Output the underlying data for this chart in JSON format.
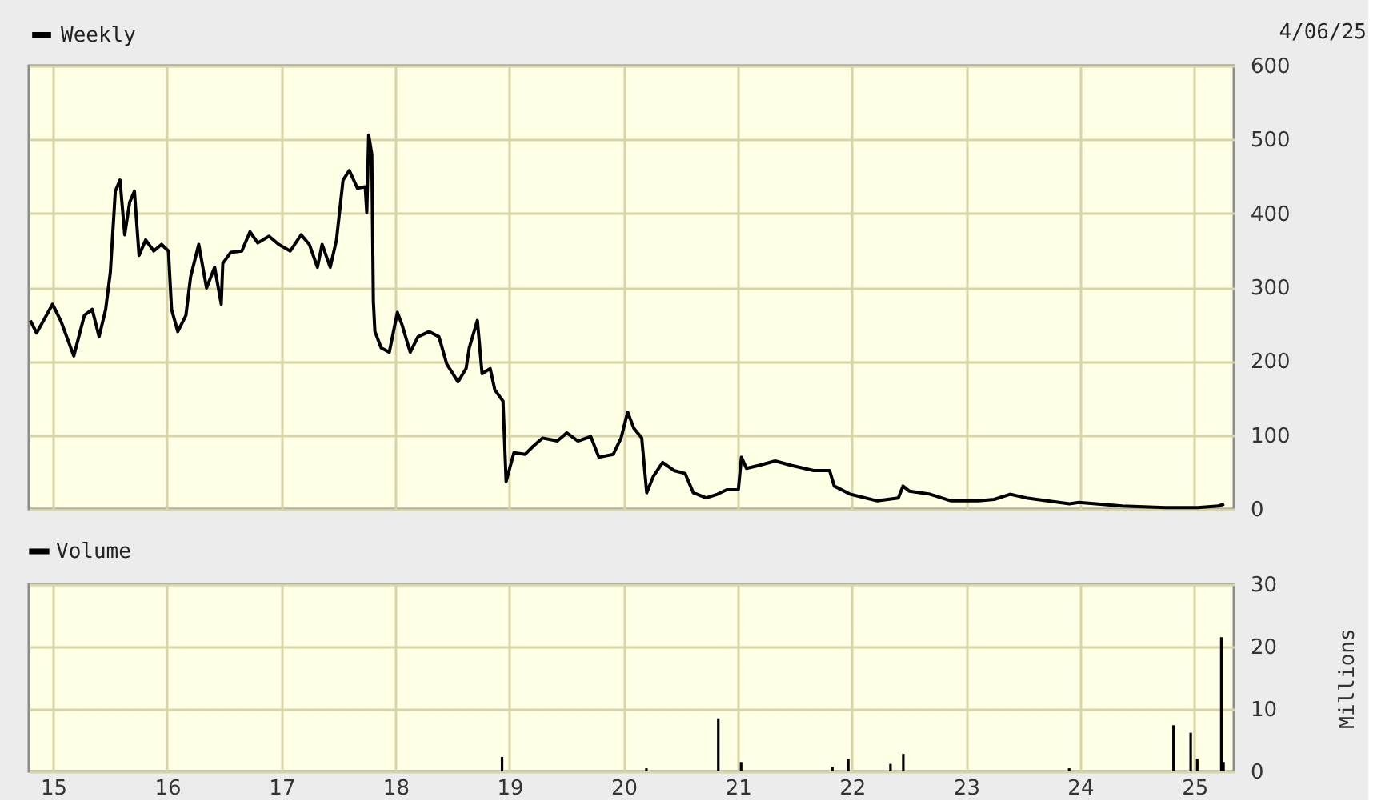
{
  "chart_data": [
    {
      "type": "line",
      "series": [
        {
          "name": "Weekly",
          "color": "#000000",
          "x": [
            "2014-10-20",
            "2014-11-09",
            "2014-12-30",
            "2015-01-25",
            "2015-03-08",
            "2015-04-11",
            "2015-05-06",
            "2015-05-28",
            "2015-06-18",
            "2015-07-03",
            "2015-07-19",
            "2015-08-03",
            "2015-08-18",
            "2015-09-03",
            "2015-09-18",
            "2015-10-03",
            "2015-10-24",
            "2015-11-19",
            "2015-12-14",
            "2016-01-05",
            "2016-01-15",
            "2016-02-04",
            "2016-03-01",
            "2016-03-16",
            "2016-04-11",
            "2016-05-06",
            "2016-06-01",
            "2016-06-22",
            "2016-06-27",
            "2016-07-22",
            "2016-08-27",
            "2016-09-22",
            "2016-10-17",
            "2016-11-22",
            "2016-12-23",
            "2017-01-29",
            "2017-03-05",
            "2017-03-31",
            "2017-04-26",
            "2017-05-11",
            "2017-06-06",
            "2017-06-26",
            "2017-07-17",
            "2017-08-06",
            "2017-09-01",
            "2017-09-26",
            "2017-10-01",
            "2017-10-07",
            "2017-10-17",
            "2017-10-22",
            "2017-10-27",
            "2017-11-16",
            "2017-12-12",
            "2018-01-07",
            "2018-01-22",
            "2018-02-17",
            "2018-03-14",
            "2018-04-19",
            "2018-05-20",
            "2018-06-14",
            "2018-07-20",
            "2018-08-15",
            "2018-08-25",
            "2018-09-20",
            "2018-10-05",
            "2018-10-31",
            "2018-11-15",
            "2018-12-11",
            "2018-12-21",
            "2019-01-15",
            "2019-02-20",
            "2019-03-18",
            "2019-04-17",
            "2019-06-03",
            "2019-07-03",
            "2019-08-08",
            "2019-09-18",
            "2019-10-14",
            "2019-11-29",
            "2019-12-24",
            "2020-01-14",
            "2020-02-03",
            "2020-02-28",
            "2020-03-15",
            "2020-04-05",
            "2020-05-05",
            "2020-06-10",
            "2020-07-16",
            "2020-08-11",
            "2020-09-21",
            "2020-10-27",
            "2020-11-26",
            "2021-01-02",
            "2021-01-12",
            "2021-01-28",
            "2021-03-10",
            "2021-04-30",
            "2021-06-20",
            "2021-08-31",
            "2021-10-21",
            "2021-11-05",
            "2021-12-26",
            "2022-03-23",
            "2022-05-29",
            "2022-06-13",
            "2022-07-04",
            "2022-09-08",
            "2022-11-14",
            "2023-02-09",
            "2023-04-01",
            "2023-05-22",
            "2023-07-13",
            "2023-09-17",
            "2023-11-28",
            "2023-12-28",
            "2024-05-15",
            "2024-09-30",
            "2025-01-11",
            "2025-03-19",
            "2025-04-06"
          ],
          "values": [
            255,
            238,
            277,
            255,
            207,
            262,
            270,
            233,
            270,
            320,
            430,
            445,
            371,
            415,
            430,
            343,
            364,
            349,
            358,
            349,
            270,
            240,
            262,
            314,
            358,
            299,
            327,
            277,
            332,
            347,
            349,
            375,
            360,
            369,
            358,
            349,
            371,
            358,
            327,
            358,
            327,
            364,
            445,
            458,
            434,
            436,
            401,
            506,
            480,
            281,
            240,
            218,
            212,
            266,
            249,
            212,
            233,
            240,
            233,
            196,
            172,
            190,
            218,
            255,
            183,
            190,
            161,
            146,
            37,
            76,
            74,
            85,
            96,
            92,
            103,
            92,
            98,
            70,
            74,
            96,
            131,
            109,
            96,
            22,
            44,
            63,
            52,
            48,
            22,
            15,
            20,
            26,
            26,
            70,
            55,
            59,
            65,
            59,
            52,
            52,
            31,
            20,
            11,
            15,
            31,
            24,
            20,
            11,
            11,
            13,
            20,
            15,
            11,
            7,
            9,
            4,
            2,
            2,
            4,
            7
          ]
        }
      ],
      "xlim": [
        "2014-10-15",
        "2025-05-07"
      ],
      "xticks": [
        {
          "value": "2015-01-01",
          "label": null
        },
        {
          "value": "2016-01-01",
          "label": null
        },
        {
          "value": "2017-01-01",
          "label": null
        },
        {
          "value": "2018-01-01",
          "label": null
        },
        {
          "value": "2019-01-01",
          "label": null
        },
        {
          "value": "2020-01-01",
          "label": null
        },
        {
          "value": "2021-01-01",
          "label": null
        },
        {
          "value": "2022-01-01",
          "label": null
        },
        {
          "value": "2023-01-01",
          "label": null
        },
        {
          "value": "2024-01-01",
          "label": null
        },
        {
          "value": "2025-01-01",
          "label": null
        }
      ],
      "ylim": [
        0,
        600
      ],
      "yticks": [
        0,
        100,
        200,
        300,
        400,
        500,
        600
      ],
      "tick_labels": "y",
      "grid": true,
      "legend": "top left",
      "annotations": [
        "4/06/25"
      ]
    },
    {
      "type": "bar",
      "series": [
        {
          "name": "Volume",
          "color": "#000000",
          "x": [
            "2018-12-08",
            "2020-03-14",
            "2020-10-30",
            "2021-01-11",
            "2021-10-30",
            "2021-12-20",
            "2022-05-04",
            "2022-06-14",
            "2023-11-27",
            "2024-10-26",
            "2024-12-20",
            "2025-01-10",
            "2025-03-28",
            "2025-04-04"
          ],
          "values": [
            2.3,
            0.5,
            8.5,
            1.5,
            0.7,
            2,
            1.2,
            2.8,
            0.5,
            7.4,
            6.2,
            2,
            21.5,
            1.5
          ]
        }
      ],
      "xlim": [
        "2014-10-15",
        "2025-05-07"
      ],
      "xticks": [
        {
          "value": "2015-01-01",
          "label": "15"
        },
        {
          "value": "2016-01-01",
          "label": "16"
        },
        {
          "value": "2017-01-01",
          "label": "17"
        },
        {
          "value": "2018-01-01",
          "label": "18"
        },
        {
          "value": "2019-01-01",
          "label": "19"
        },
        {
          "value": "2020-01-01",
          "label": "20"
        },
        {
          "value": "2021-01-01",
          "label": "21"
        },
        {
          "value": "2022-01-01",
          "label": "22"
        },
        {
          "value": "2023-01-01",
          "label": "23"
        },
        {
          "value": "2024-01-01",
          "label": "24"
        },
        {
          "value": "2025-01-01",
          "label": "25"
        }
      ],
      "ylim": [
        0,
        30
      ],
      "yticks": [
        0,
        10,
        20,
        30
      ],
      "ylabel": "Millions",
      "grid": true,
      "legend": "top left"
    }
  ]
}
